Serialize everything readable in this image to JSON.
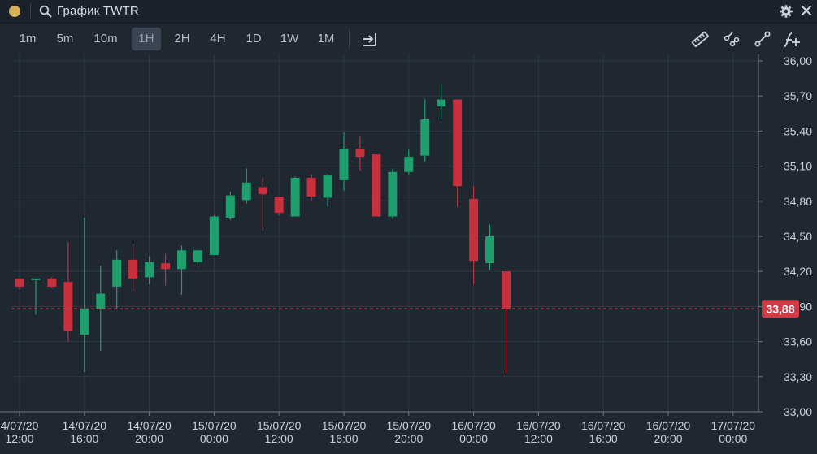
{
  "window": {
    "title": "График TWTR"
  },
  "toolbar": {
    "timeframes": [
      "1m",
      "5m",
      "10m",
      "1H",
      "2H",
      "4H",
      "1D",
      "1W",
      "1M"
    ],
    "active": "1H"
  },
  "colors": {
    "background": "#1f2731",
    "up": "#1f9e6e",
    "down": "#c7303d",
    "price_line": "#d33a47",
    "accent": "#d6b35b"
  },
  "chart_data": {
    "type": "candlestick",
    "ylim": [
      33.0,
      36.0
    ],
    "y_ticks": [
      "36,00",
      "35,70",
      "35,40",
      "35,10",
      "34,80",
      "34,50",
      "34,20",
      "33,90",
      "33,60",
      "33,30",
      "33,00"
    ],
    "x_ticks": [
      {
        "date": "4/07/20",
        "time": "12:00"
      },
      {
        "date": "14/07/20",
        "time": "16:00"
      },
      {
        "date": "14/07/20",
        "time": "20:00"
      },
      {
        "date": "15/07/20",
        "time": "00:00"
      },
      {
        "date": "15/07/20",
        "time": "12:00"
      },
      {
        "date": "15/07/20",
        "time": "16:00"
      },
      {
        "date": "15/07/20",
        "time": "20:00"
      },
      {
        "date": "16/07/20",
        "time": "00:00"
      },
      {
        "date": "16/07/20",
        "time": "12:00"
      },
      {
        "date": "16/07/20",
        "time": "16:00"
      },
      {
        "date": "16/07/20",
        "time": "20:00"
      },
      {
        "date": "17/07/20",
        "time": "00:00"
      }
    ],
    "last_price": 33.88,
    "last_price_label": "33,88",
    "candles": [
      {
        "o": 34.14,
        "h": 34.14,
        "l": 34.05,
        "c": 34.07
      },
      {
        "o": 34.13,
        "h": 34.14,
        "l": 33.83,
        "c": 34.14
      },
      {
        "o": 34.14,
        "h": 34.15,
        "l": 34.06,
        "c": 34.07
      },
      {
        "o": 34.11,
        "h": 34.45,
        "l": 33.6,
        "c": 33.69
      },
      {
        "o": 33.66,
        "h": 34.66,
        "l": 33.34,
        "c": 33.88
      },
      {
        "o": 33.88,
        "h": 34.25,
        "l": 33.52,
        "c": 34.01
      },
      {
        "o": 34.07,
        "h": 34.38,
        "l": 33.88,
        "c": 34.3
      },
      {
        "o": 34.3,
        "h": 34.44,
        "l": 34.03,
        "c": 34.14
      },
      {
        "o": 34.15,
        "h": 34.33,
        "l": 34.09,
        "c": 34.28
      },
      {
        "o": 34.27,
        "h": 34.35,
        "l": 34.08,
        "c": 34.22
      },
      {
        "o": 34.22,
        "h": 34.42,
        "l": 34.0,
        "c": 34.38
      },
      {
        "o": 34.28,
        "h": 34.38,
        "l": 34.24,
        "c": 34.38
      },
      {
        "o": 34.34,
        "h": 34.68,
        "l": 34.34,
        "c": 34.67
      },
      {
        "o": 34.66,
        "h": 34.88,
        "l": 34.64,
        "c": 34.85
      },
      {
        "o": 34.81,
        "h": 35.08,
        "l": 34.78,
        "c": 34.96
      },
      {
        "o": 34.92,
        "h": 35.0,
        "l": 34.55,
        "c": 34.86
      },
      {
        "o": 34.84,
        "h": 34.84,
        "l": 34.68,
        "c": 34.7
      },
      {
        "o": 34.67,
        "h": 35.01,
        "l": 34.67,
        "c": 35.0
      },
      {
        "o": 35.0,
        "h": 35.03,
        "l": 34.8,
        "c": 34.84
      },
      {
        "o": 34.83,
        "h": 35.03,
        "l": 34.75,
        "c": 35.02
      },
      {
        "o": 34.98,
        "h": 35.39,
        "l": 34.89,
        "c": 35.25
      },
      {
        "o": 35.25,
        "h": 35.35,
        "l": 35.06,
        "c": 35.18
      },
      {
        "o": 35.2,
        "h": 35.2,
        "l": 34.67,
        "c": 34.67
      },
      {
        "o": 34.67,
        "h": 35.08,
        "l": 34.65,
        "c": 35.05
      },
      {
        "o": 35.05,
        "h": 35.24,
        "l": 35.03,
        "c": 35.18
      },
      {
        "o": 35.19,
        "h": 35.67,
        "l": 35.14,
        "c": 35.5
      },
      {
        "o": 35.61,
        "h": 35.8,
        "l": 35.5,
        "c": 35.67
      },
      {
        "o": 35.67,
        "h": 35.67,
        "l": 34.75,
        "c": 34.93
      },
      {
        "o": 34.82,
        "h": 34.93,
        "l": 34.09,
        "c": 34.29
      },
      {
        "o": 34.27,
        "h": 34.6,
        "l": 34.21,
        "c": 34.5
      },
      {
        "o": 34.2,
        "h": 34.2,
        "l": 33.33,
        "c": 33.88
      }
    ]
  }
}
